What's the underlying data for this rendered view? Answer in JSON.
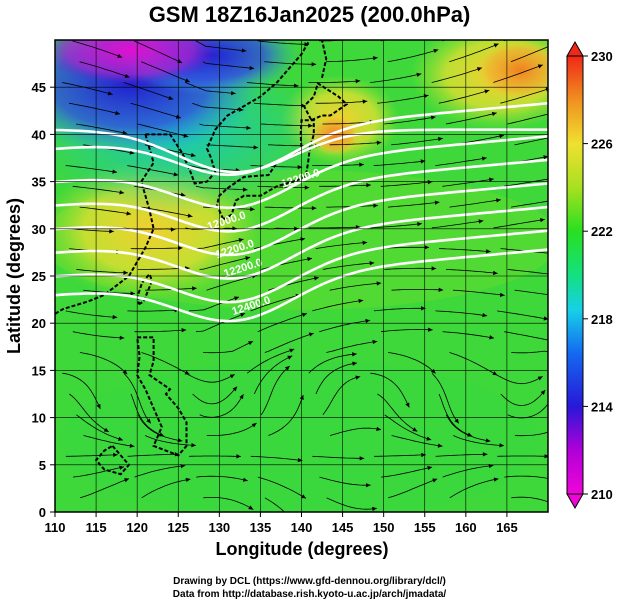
{
  "chart_data": {
    "type": "heatmap",
    "title": "GSM 18Z16Jan2025 (200.0hPa)",
    "xlabel": "Longitude (degrees)",
    "ylabel": "Latitude  (degrees)",
    "xlim": [
      110,
      170
    ],
    "ylim": [
      0,
      50
    ],
    "x_ticks": [
      110,
      115,
      120,
      125,
      130,
      135,
      140,
      145,
      150,
      155,
      160,
      165
    ],
    "y_ticks": [
      0,
      5,
      10,
      15,
      20,
      25,
      30,
      35,
      40,
      45
    ],
    "grid": true,
    "colorbar": {
      "ticks": [
        210,
        214,
        218,
        222,
        226,
        230
      ],
      "range": [
        210,
        230
      ]
    },
    "contour_labels": [
      "12000.0",
      "12200.0",
      "12400.0"
    ]
  },
  "credits": {
    "line1": "Drawing by DCL (https://www.gfd-dennou.org/library/dcl/)",
    "line2": "Data from http://database.rish.kyoto-u.ac.jp/arch/jmadata/"
  }
}
